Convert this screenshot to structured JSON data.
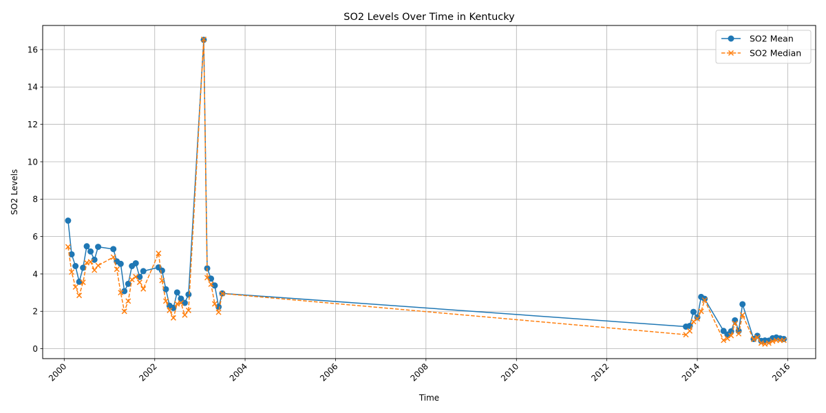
{
  "chart_data": {
    "type": "line",
    "title": "SO2 Levels Over Time in Kentucky",
    "xlabel": "Time",
    "ylabel": "SO2 Levels",
    "x_type": "date",
    "xlim": [
      "1999-07-11",
      "2016-08-14"
    ],
    "ylim": [
      -0.53,
      17.29
    ],
    "x_ticks": [
      "2000",
      "2002",
      "2004",
      "2006",
      "2008",
      "2010",
      "2012",
      "2014",
      "2016"
    ],
    "y_ticks": [
      0,
      2,
      4,
      6,
      8,
      10,
      12,
      14,
      16
    ],
    "grid": true,
    "legend_position": "top-right",
    "series": [
      {
        "name": "SO2 Mean",
        "color": "#1f77b4",
        "line_style": "solid",
        "marker": "circle",
        "points": [
          [
            "2000-02-01",
            6.85
          ],
          [
            "2000-03-01",
            5.05
          ],
          [
            "2000-04-01",
            4.42
          ],
          [
            "2000-05-01",
            3.58
          ],
          [
            "2000-06-01",
            4.33
          ],
          [
            "2000-07-01",
            5.48
          ],
          [
            "2000-08-01",
            5.2
          ],
          [
            "2000-09-01",
            4.76
          ],
          [
            "2000-10-01",
            5.45
          ],
          [
            "2001-02-01",
            5.33
          ],
          [
            "2001-03-01",
            4.67
          ],
          [
            "2001-04-01",
            4.54
          ],
          [
            "2001-05-01",
            3.08
          ],
          [
            "2001-06-01",
            3.47
          ],
          [
            "2001-07-01",
            4.42
          ],
          [
            "2001-08-01",
            4.57
          ],
          [
            "2001-09-01",
            3.84
          ],
          [
            "2001-10-01",
            4.15
          ],
          [
            "2002-02-01",
            4.35
          ],
          [
            "2002-03-01",
            4.18
          ],
          [
            "2002-04-01",
            3.18
          ],
          [
            "2002-05-01",
            2.3
          ],
          [
            "2002-06-01",
            2.18
          ],
          [
            "2002-07-01",
            3.01
          ],
          [
            "2002-08-01",
            2.68
          ],
          [
            "2002-09-01",
            2.45
          ],
          [
            "2002-10-01",
            2.9
          ],
          [
            "2003-02-01",
            16.52
          ],
          [
            "2003-03-01",
            4.3
          ],
          [
            "2003-04-01",
            3.75
          ],
          [
            "2003-05-01",
            3.38
          ],
          [
            "2003-06-01",
            2.24
          ],
          [
            "2003-07-01",
            2.96
          ],
          [
            "2013-10-01",
            1.18
          ],
          [
            "2013-11-01",
            1.22
          ],
          [
            "2013-12-01",
            1.97
          ],
          [
            "2014-01-01",
            1.68
          ],
          [
            "2014-02-01",
            2.77
          ],
          [
            "2014-03-01",
            2.67
          ],
          [
            "2014-08-01",
            0.95
          ],
          [
            "2014-09-01",
            0.76
          ],
          [
            "2014-10-01",
            0.93
          ],
          [
            "2014-11-01",
            1.52
          ],
          [
            "2014-12-01",
            0.95
          ],
          [
            "2015-01-01",
            2.38
          ],
          [
            "2015-04-01",
            0.52
          ],
          [
            "2015-05-01",
            0.69
          ],
          [
            "2015-06-01",
            0.42
          ],
          [
            "2015-07-01",
            0.44
          ],
          [
            "2015-08-01",
            0.43
          ],
          [
            "2015-09-01",
            0.56
          ],
          [
            "2015-10-01",
            0.6
          ],
          [
            "2015-11-01",
            0.55
          ],
          [
            "2015-12-01",
            0.52
          ]
        ]
      },
      {
        "name": "SO2 Median",
        "color": "#ff7f0e",
        "line_style": "dashed",
        "marker": "x",
        "points": [
          [
            "2000-02-01",
            5.45
          ],
          [
            "2000-03-01",
            4.1
          ],
          [
            "2000-04-01",
            3.3
          ],
          [
            "2000-05-01",
            2.85
          ],
          [
            "2000-06-01",
            3.55
          ],
          [
            "2000-07-01",
            4.6
          ],
          [
            "2000-08-01",
            4.65
          ],
          [
            "2000-09-01",
            4.2
          ],
          [
            "2000-10-01",
            4.45
          ],
          [
            "2001-02-01",
            4.9
          ],
          [
            "2001-03-01",
            4.25
          ],
          [
            "2001-04-01",
            3.0
          ],
          [
            "2001-05-01",
            2.0
          ],
          [
            "2001-06-01",
            2.55
          ],
          [
            "2001-07-01",
            3.7
          ],
          [
            "2001-08-01",
            3.85
          ],
          [
            "2001-09-01",
            3.55
          ],
          [
            "2001-10-01",
            3.2
          ],
          [
            "2002-02-01",
            5.1
          ],
          [
            "2002-03-01",
            3.65
          ],
          [
            "2002-04-01",
            2.55
          ],
          [
            "2002-05-01",
            2.05
          ],
          [
            "2002-06-01",
            1.65
          ],
          [
            "2002-07-01",
            2.4
          ],
          [
            "2002-08-01",
            2.45
          ],
          [
            "2002-09-01",
            1.8
          ],
          [
            "2002-10-01",
            2.05
          ],
          [
            "2003-02-01",
            16.55
          ],
          [
            "2003-03-01",
            3.8
          ],
          [
            "2003-04-01",
            3.45
          ],
          [
            "2003-05-01",
            2.4
          ],
          [
            "2003-06-01",
            1.95
          ],
          [
            "2003-07-01",
            2.95
          ],
          [
            "2013-10-01",
            0.75
          ],
          [
            "2013-11-01",
            0.95
          ],
          [
            "2013-12-01",
            1.45
          ],
          [
            "2014-01-01",
            1.6
          ],
          [
            "2014-02-01",
            2.0
          ],
          [
            "2014-03-01",
            2.6
          ],
          [
            "2014-08-01",
            0.45
          ],
          [
            "2014-09-01",
            0.55
          ],
          [
            "2014-10-01",
            0.7
          ],
          [
            "2014-11-01",
            1.35
          ],
          [
            "2014-12-01",
            0.8
          ],
          [
            "2015-01-01",
            1.8
          ],
          [
            "2015-04-01",
            0.5
          ],
          [
            "2015-05-01",
            0.6
          ],
          [
            "2015-06-01",
            0.3
          ],
          [
            "2015-07-01",
            0.25
          ],
          [
            "2015-08-01",
            0.3
          ],
          [
            "2015-09-01",
            0.4
          ],
          [
            "2015-10-01",
            0.45
          ],
          [
            "2015-11-01",
            0.45
          ],
          [
            "2015-12-01",
            0.45
          ]
        ]
      }
    ]
  }
}
